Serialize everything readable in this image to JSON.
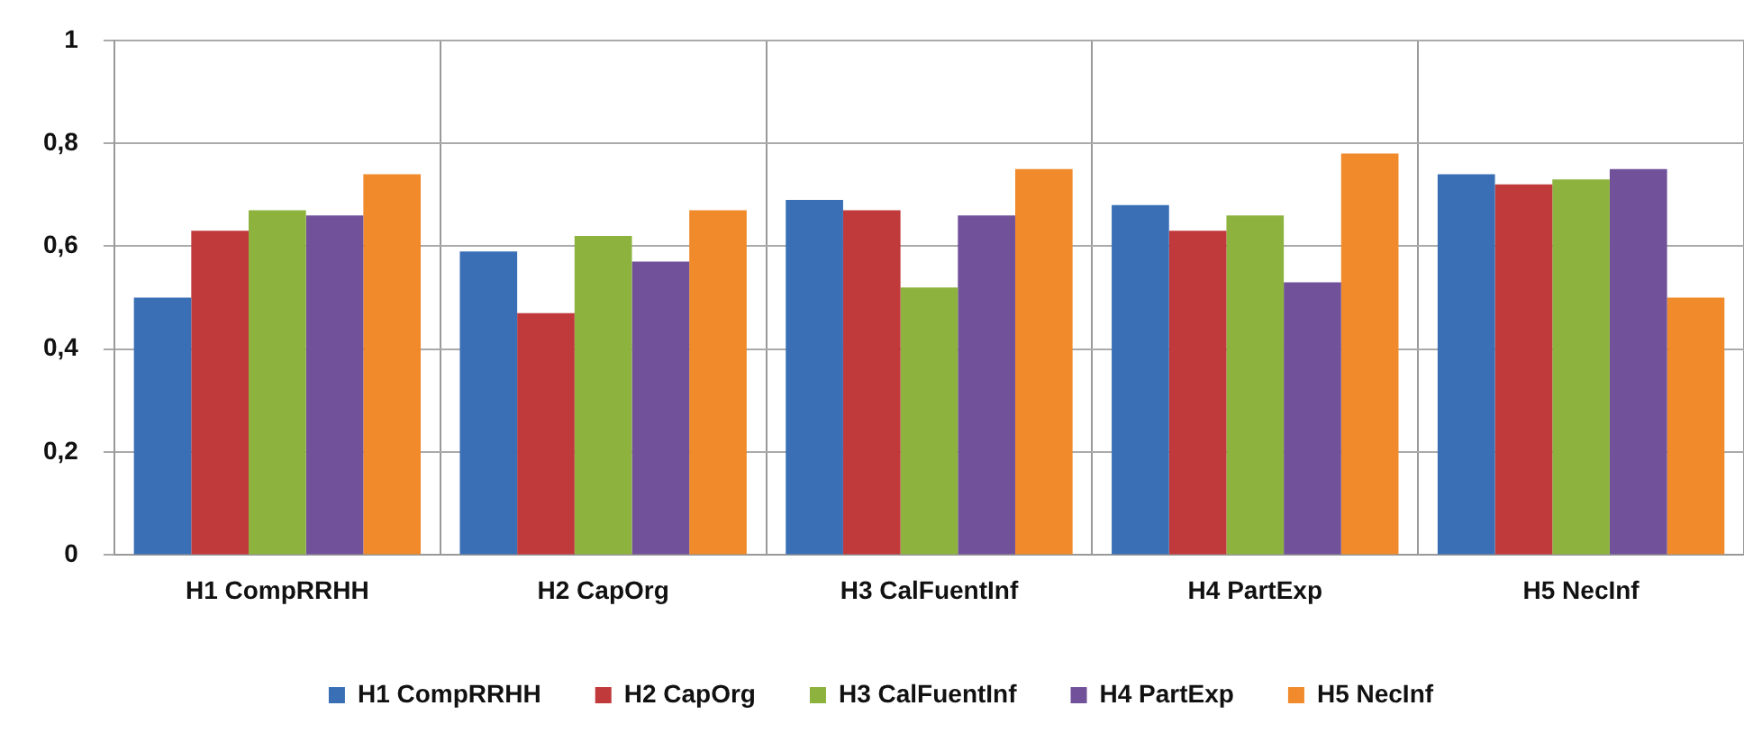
{
  "chart_data": {
    "type": "bar",
    "categories": [
      "H1 CompRRHH",
      "H2 CapOrg",
      "H3 CalFuentInf",
      "H4 PartExp",
      "H5 NecInf"
    ],
    "series": [
      {
        "name": "H1 CompRRHH",
        "color": "#3a6fb5",
        "values": [
          0.5,
          0.59,
          0.69,
          0.68,
          0.74
        ]
      },
      {
        "name": "H2 CapOrg",
        "color": "#c0393b",
        "values": [
          0.63,
          0.47,
          0.67,
          0.63,
          0.72
        ]
      },
      {
        "name": "H3 CalFuentInf",
        "color": "#8db33e",
        "values": [
          0.67,
          0.62,
          0.52,
          0.66,
          0.73
        ]
      },
      {
        "name": "H4 PartExp",
        "color": "#71529a",
        "values": [
          0.66,
          0.57,
          0.66,
          0.53,
          0.75
        ]
      },
      {
        "name": "H5 NecInf",
        "color": "#f08a2a",
        "values": [
          0.74,
          0.67,
          0.75,
          0.78,
          0.5
        ]
      }
    ],
    "ylim": [
      0,
      1
    ],
    "yticks": [
      0,
      {
        "value": 0.2,
        "label": "0,2"
      },
      {
        "value": 0.4,
        "label": "0,4"
      },
      {
        "value": 0.6,
        "label": "0,6"
      },
      {
        "value": 0.8,
        "label": "0,8"
      },
      1
    ],
    "grid": true,
    "legend": "bottom"
  }
}
